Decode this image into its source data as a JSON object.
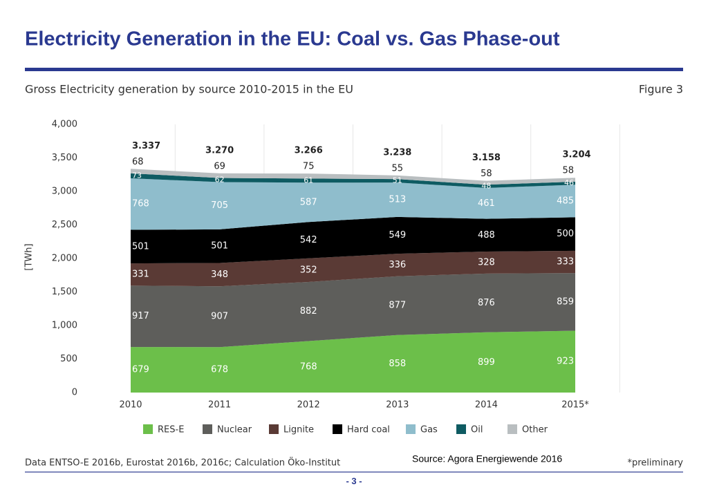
{
  "slide_title": "Electricity Generation in the EU: Coal vs. Gas Phase-out",
  "source": "Source: Agora Energiewende 2016",
  "page_number": "- 3 -",
  "chart_data": {
    "type": "stacked-area",
    "title": "Gross Electricity generation by source 2010-2015 in the EU",
    "figure_label": "Figure 3",
    "y_label": "[TWh]",
    "footnote": "Data ENTSO-E 2016b, Eurostat 2016b, 2016c; Calculation Öko-Institut",
    "footnote_right": "*preliminary",
    "categories": [
      "2010",
      "2011",
      "2012",
      "2013",
      "2014",
      "2015*"
    ],
    "series": [
      {
        "name": "RES-E",
        "color": "#6cbf4a",
        "values": [
          679,
          678,
          768,
          858,
          899,
          923
        ]
      },
      {
        "name": "Nuclear",
        "color": "#5e5e5b",
        "values": [
          917,
          907,
          882,
          877,
          876,
          859
        ]
      },
      {
        "name": "Lignite",
        "color": "#5a3a35",
        "values": [
          331,
          348,
          352,
          336,
          328,
          333
        ]
      },
      {
        "name": "Hard coal",
        "color": "#000000",
        "values": [
          501,
          501,
          542,
          549,
          488,
          500
        ]
      },
      {
        "name": "Gas",
        "color": "#8fbdcc",
        "values": [
          768,
          705,
          587,
          513,
          461,
          485
        ]
      },
      {
        "name": "Oil",
        "color": "#0e5b62",
        "values": [
          73,
          62,
          61,
          51,
          48,
          46
        ]
      },
      {
        "name": "Other",
        "color": "#b9bec0",
        "values": [
          68,
          69,
          75,
          55,
          58,
          58
        ]
      }
    ],
    "totals": [
      {
        "value": 3337,
        "label": "3.337"
      },
      {
        "value": 3270,
        "label": "3.270"
      },
      {
        "value": 3266,
        "label": "3.266"
      },
      {
        "value": 3238,
        "label": "3.238"
      },
      {
        "value": 3158,
        "label": "3.158"
      },
      {
        "value": 3204,
        "label": "3.204"
      }
    ],
    "ylim": [
      0,
      4000
    ],
    "yticks": [
      0,
      500,
      {
        "value": 1000,
        "label": "1,000"
      },
      {
        "value": 1500,
        "label": "1,500"
      },
      {
        "value": 2000,
        "label": "2,000"
      },
      {
        "value": 2500,
        "label": "2,500"
      },
      {
        "value": 3000,
        "label": "3,000"
      },
      {
        "value": 3500,
        "label": "3,500"
      },
      {
        "value": 4000,
        "label": "4,000"
      }
    ],
    "legend": "bottom"
  }
}
